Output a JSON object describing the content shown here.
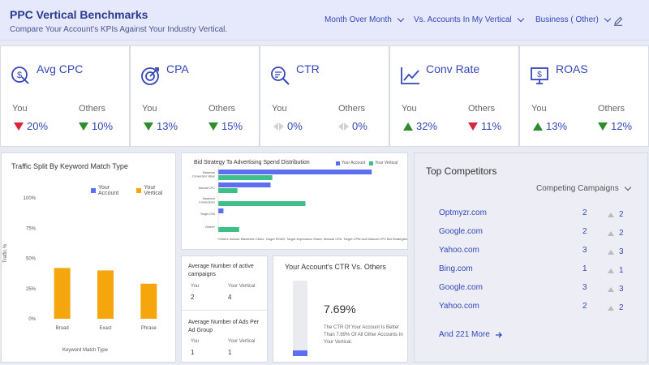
{
  "header": {
    "title": "PPC Vertical Benchmarks",
    "subtitle": "Compare Your Account's KPIs Against Your Industry Vertical.",
    "filters": [
      "Month Over Month",
      "Vs. Accounts In My Vertical",
      "Business ( Other)"
    ]
  },
  "kpis": [
    {
      "title": "Avg CPC",
      "icon": "coin-cursor-icon",
      "you_label": "You",
      "others_label": "Others",
      "you": "20%",
      "you_trend": "down-bad",
      "others": "10%",
      "others_trend": "down-good"
    },
    {
      "title": "CPA",
      "icon": "target-icon",
      "you_label": "You",
      "others_label": "Others",
      "you": "13%",
      "you_trend": "down-good",
      "others": "15%",
      "others_trend": "down-good"
    },
    {
      "title": "CTR",
      "icon": "magnifier-icon",
      "you_label": "You",
      "others_label": "Others",
      "you": "0%",
      "you_trend": "flat",
      "others": "0%",
      "others_trend": "flat"
    },
    {
      "title": "Conv Rate",
      "icon": "line-chart-icon",
      "you_label": "You",
      "others_label": "Others",
      "you": "32%",
      "you_trend": "up-good",
      "others": "11%",
      "others_trend": "down-bad"
    },
    {
      "title": "ROAS",
      "icon": "monitor-dollar-icon",
      "you_label": "You",
      "others_label": "Others",
      "you": "13%",
      "you_trend": "up-good",
      "others": "12%",
      "others_trend": "down-good"
    }
  ],
  "traffic_split": {
    "title": "Traffic Split By Keyword Match Type",
    "legend_you": "Your Account",
    "legend_vertical": "Your Vertical",
    "ylabel": "Traffic %",
    "xlabel": "Keyword Match Type",
    "ticks": [
      "100%",
      "75%",
      "50%",
      "25%",
      "0%"
    ]
  },
  "bid_strategy": {
    "title": "Bid Strategy To Advertising Spend Distribution",
    "legend_you": "Your Account",
    "legend_vertical": "Your Vertical",
    "footnote": "*Others Include Maximize Clicks, Target ROAS, Target Impression Share, Manual CPA, Target CPM and Manual CPV Bid Strategies."
  },
  "active_campaigns": {
    "title": "Average Number of active campaigns",
    "you_label": "You",
    "vertical_label": "Your Vertical",
    "you": "2",
    "vertical": "4"
  },
  "ads_per_group": {
    "title": "Average Number of Ads Per Ad Group",
    "you_label": "You",
    "vertical_label": "Your Vertical",
    "you": "1",
    "vertical": "1"
  },
  "ctr_vs": {
    "title": "Your Account's CTR Vs. Others",
    "value": "7.69%",
    "fill_fraction": 0.08,
    "description": "The CTR Of Your Account Is Better Than 7.69% Of All Other Accounts In Your Vertical."
  },
  "competitors": {
    "title": "Top Competitors",
    "dropdown": "Competing Campaigns",
    "rows": [
      {
        "name": "Optmyzr.com",
        "count": "2",
        "trend": "2"
      },
      {
        "name": "Google.com",
        "count": "2",
        "trend": "2"
      },
      {
        "name": "Yahoo.com",
        "count": "3",
        "trend": "3"
      },
      {
        "name": "Bing.com",
        "count": "1",
        "trend": "1"
      },
      {
        "name": "Google.com",
        "count": "3",
        "trend": "3"
      },
      {
        "name": "Yahoo.com",
        "count": "2",
        "trend": "2"
      }
    ],
    "more": "And 221 More"
  },
  "colors": {
    "you": "#f5a60c",
    "vertical": "#f5a60c",
    "bid_you": "#5b6ff0",
    "bid_vertical": "#3dbf87",
    "accent": "#3446b8"
  },
  "chart_data": [
    {
      "type": "bar",
      "title": "Traffic Split By Keyword Match Type",
      "xlabel": "Keyword Match Type",
      "ylabel": "Traffic %",
      "categories": [
        "Broad",
        "Exact",
        "Phrase"
      ],
      "series": [
        {
          "name": "Your Account",
          "values": [
            42,
            40,
            29
          ]
        }
      ],
      "ylim": [
        0,
        100
      ],
      "legend": "top-right"
    },
    {
      "type": "bar",
      "title": "Bid Strategy To Advertising Spend Distribution",
      "orientation": "horizontal",
      "categories": [
        "Maximize Conversion Value",
        "Manual CPC",
        "Maximize Conversions",
        "Target CPA",
        "Others*"
      ],
      "series": [
        {
          "name": "Your Account",
          "values": [
            88,
            30,
            0,
            3,
            0
          ]
        },
        {
          "name": "Your Vertical",
          "values": [
            31,
            11,
            50,
            0,
            12
          ]
        }
      ],
      "legend": "top-right"
    }
  ]
}
